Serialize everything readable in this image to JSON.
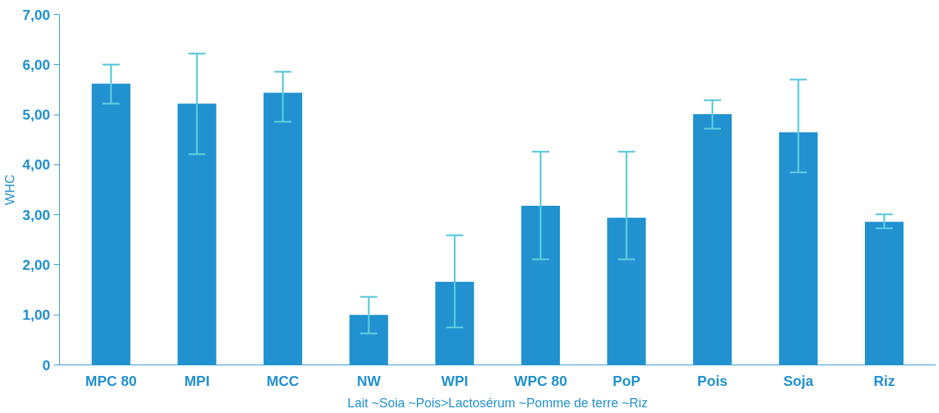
{
  "chart_data": {
    "type": "bar",
    "ylabel": "WHC",
    "categories": [
      "MPC 80",
      "MPI",
      "MCC",
      "NW",
      "WPI",
      "WPC 80",
      "PoP",
      "Pois",
      "Soja",
      "Riz"
    ],
    "values": [
      5.62,
      5.22,
      5.44,
      1.0,
      1.66,
      3.18,
      2.94,
      5.01,
      4.65,
      2.86
    ],
    "errors": [
      [
        5.22,
        6.0
      ],
      [
        4.21,
        6.22
      ],
      [
        4.86,
        5.86
      ],
      [
        0.63,
        1.36
      ],
      [
        0.75,
        2.59
      ],
      [
        2.11,
        4.26
      ],
      [
        2.11,
        4.26
      ],
      [
        4.72,
        5.29
      ],
      [
        3.85,
        5.7
      ],
      [
        2.73,
        3.01
      ]
    ],
    "color": "#2191d0",
    "ylim": [
      0,
      7
    ],
    "yticks": [
      {
        "value": 0,
        "label": "0"
      },
      {
        "value": 1,
        "label": "1,00"
      },
      {
        "value": 2,
        "label": "2,00"
      },
      {
        "value": 3,
        "label": "3,00"
      },
      {
        "value": 4,
        "label": "4,00"
      },
      {
        "value": 5,
        "label": "5,00"
      },
      {
        "value": 6,
        "label": "6,00"
      },
      {
        "value": 7,
        "label": "7,00"
      }
    ],
    "grid": false,
    "annotations": [
      "Lait ~Soia ~Pois>Lactosérum ~Pomme de terre ~Riz"
    ]
  }
}
